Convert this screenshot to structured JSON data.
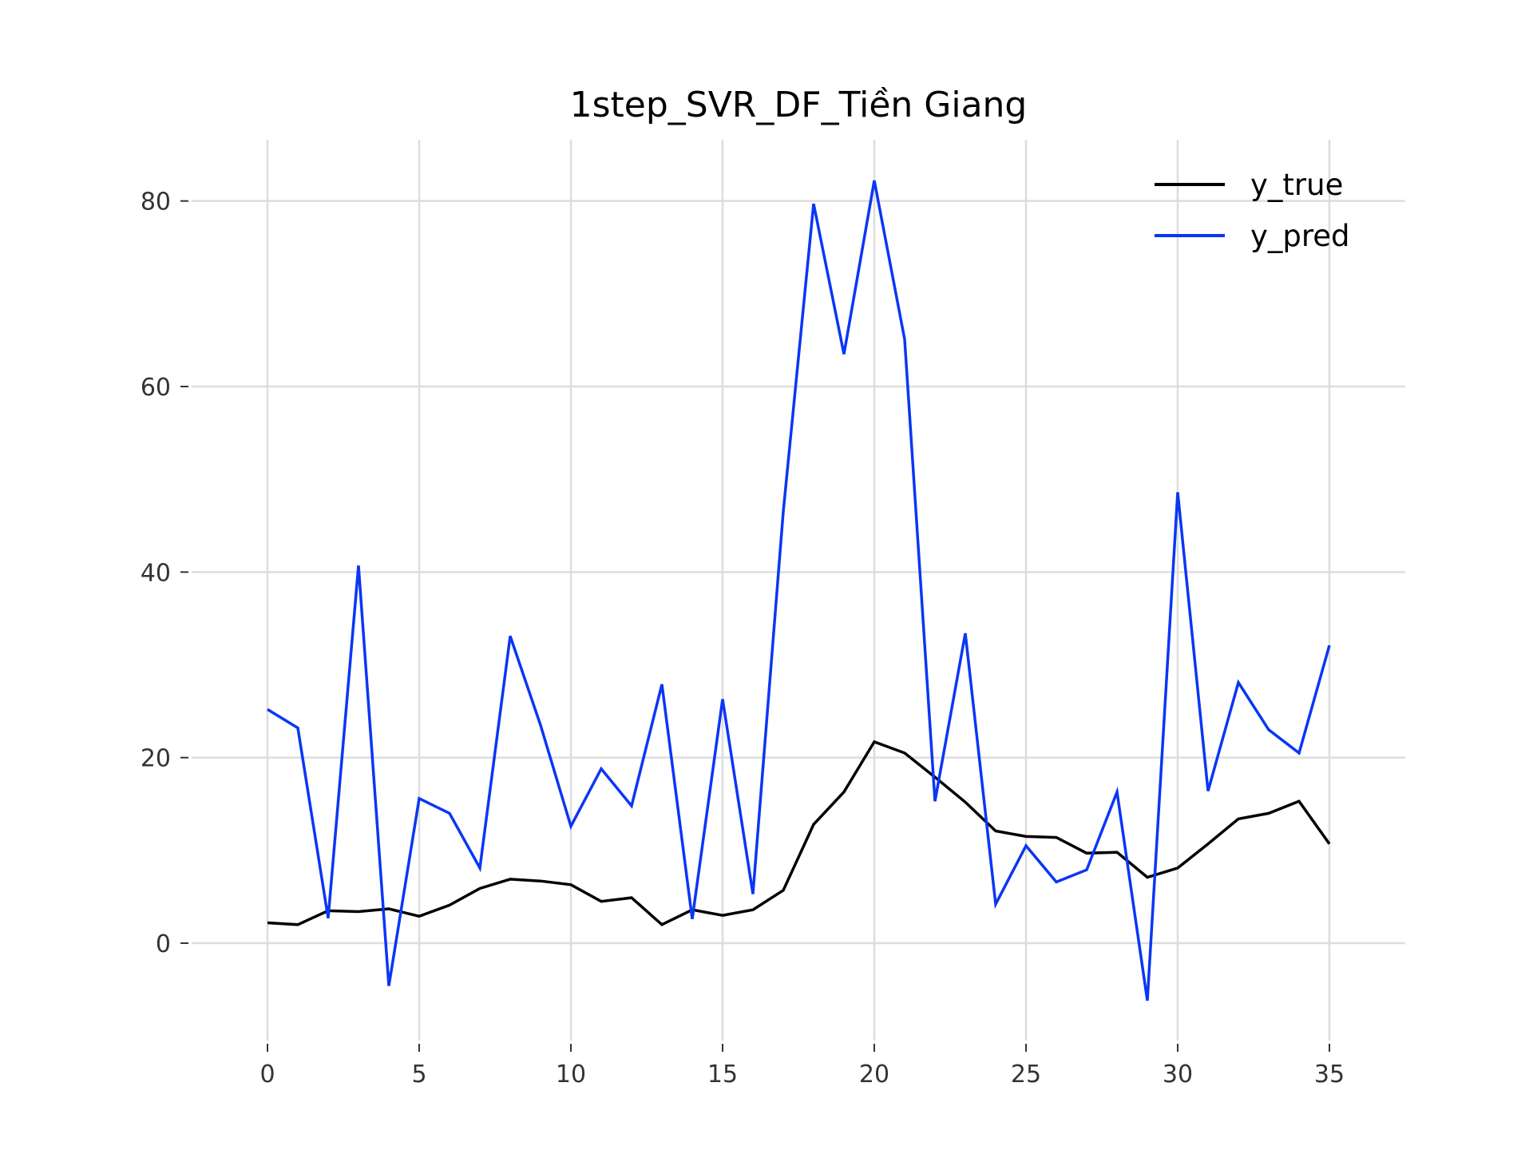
{
  "chart_data": {
    "type": "line",
    "title": "1step_SVR_DF_Tiền Giang",
    "xlabel": "",
    "ylabel": "",
    "xlim": [
      -2.5,
      37.5
    ],
    "ylim": [
      -10.5,
      86.6
    ],
    "x_ticks": [
      0,
      5,
      10,
      15,
      20,
      25,
      30,
      35
    ],
    "y_ticks": [
      0,
      20,
      40,
      60,
      80
    ],
    "grid": true,
    "legend_position": "top-right",
    "x": [
      0,
      1,
      2,
      3,
      4,
      5,
      6,
      7,
      8,
      9,
      10,
      11,
      12,
      13,
      14,
      15,
      16,
      17,
      18,
      19,
      20,
      21,
      22,
      23,
      24,
      25,
      26,
      27,
      28,
      29,
      30,
      31,
      32,
      33,
      34,
      35
    ],
    "series": [
      {
        "name": "y_true",
        "color": "#000000",
        "values": [
          2.2,
          2.0,
          3.5,
          3.4,
          3.7,
          2.9,
          4.1,
          5.9,
          6.9,
          6.7,
          6.3,
          4.5,
          4.9,
          2.0,
          3.6,
          3.0,
          3.6,
          5.7,
          12.8,
          16.3,
          21.7,
          20.5,
          17.9,
          15.2,
          12.1,
          11.5,
          11.4,
          9.7,
          9.8,
          7.1,
          8.1,
          10.7,
          13.4,
          14.0,
          15.3,
          10.7
        ]
      },
      {
        "name": "y_pred",
        "color": "#0a36f5",
        "values": [
          25.2,
          23.2,
          2.7,
          40.7,
          -4.6,
          15.6,
          14.0,
          8.1,
          33.1,
          23.5,
          12.6,
          18.8,
          14.8,
          27.9,
          2.6,
          26.3,
          5.3,
          46.5,
          79.7,
          63.5,
          82.2,
          65.1,
          15.3,
          33.4,
          4.2,
          10.5,
          6.6,
          7.9,
          16.3,
          -6.2,
          48.6,
          16.4,
          28.1,
          23.0,
          20.5,
          32.1
        ]
      }
    ]
  }
}
